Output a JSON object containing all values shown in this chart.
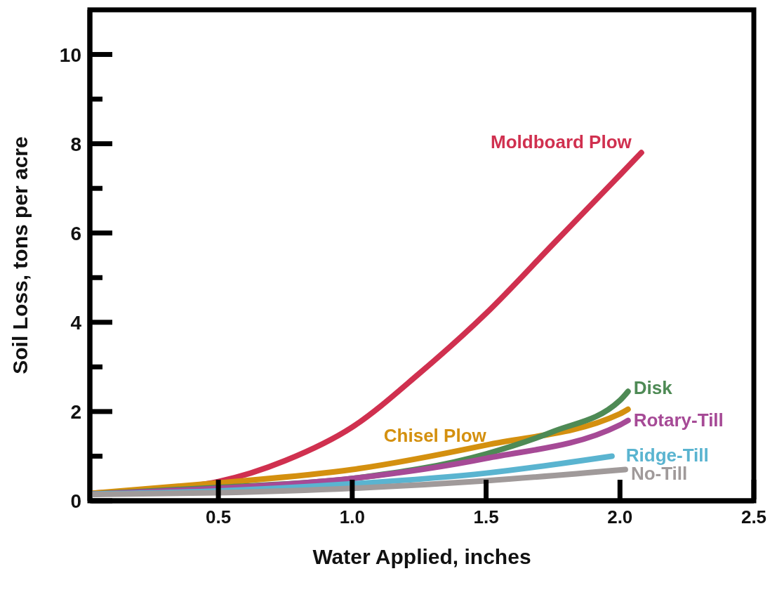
{
  "chart_data": {
    "type": "line",
    "xlabel": "Water Applied, inches",
    "ylabel": "Soil Loss, tons per acre",
    "xlim": [
      0.02,
      2.5
    ],
    "ylim": [
      0,
      11
    ],
    "xticks": [
      {
        "value": 0.5,
        "label": "0.5"
      },
      {
        "value": 1,
        "label": "1.0"
      },
      {
        "value": 1.5,
        "label": "1.5"
      },
      {
        "value": 2,
        "label": "2.0"
      },
      {
        "value": 2.5,
        "label": "2.5"
      }
    ],
    "yticks": [
      0,
      {
        "value": 1,
        "label": null
      },
      2,
      {
        "value": 3,
        "label": null
      },
      4,
      {
        "value": 5,
        "label": null
      },
      6,
      {
        "value": 7,
        "label": null
      },
      8,
      {
        "value": 9,
        "label": null
      },
      10
    ],
    "grid": false,
    "marker": "none",
    "line_style": "solid",
    "series": [
      {
        "name": "Moldboard Plow",
        "color": "#d0304f",
        "x": [
          0.03,
          0.25,
          0.4,
          0.5,
          0.75,
          1.0,
          1.25,
          1.5,
          1.75,
          2.0,
          2.08
        ],
        "values": [
          0.17,
          0.25,
          0.33,
          0.43,
          0.9,
          1.65,
          2.85,
          4.2,
          5.75,
          7.3,
          7.8
        ]
      },
      {
        "name": "Chisel Plow",
        "color": "#d4900f",
        "x": [
          0.03,
          0.5,
          1.0,
          1.5,
          2.0,
          2.03
        ],
        "values": [
          0.17,
          0.4,
          0.7,
          1.25,
          1.95,
          2.05
        ]
      },
      {
        "name": "Disk",
        "color": "#4e8a55",
        "x": [
          0.03,
          0.5,
          1.0,
          1.5,
          1.75,
          2.0,
          2.03
        ],
        "values": [
          0.15,
          0.3,
          0.5,
          1.05,
          1.55,
          2.25,
          2.45
        ]
      },
      {
        "name": "Rotary-Till",
        "color": "#a64a96",
        "x": [
          0.03,
          0.5,
          1.0,
          1.5,
          2.0,
          2.03
        ],
        "values": [
          0.15,
          0.28,
          0.5,
          0.95,
          1.7,
          1.8
        ]
      },
      {
        "name": "Ridge-Till",
        "color": "#5ab4d0",
        "x": [
          0.03,
          0.5,
          1.0,
          1.5,
          1.97
        ],
        "values": [
          0.15,
          0.22,
          0.38,
          0.62,
          1.0
        ]
      },
      {
        "name": "No-Till",
        "color": "#a09a9a",
        "x": [
          0.03,
          0.5,
          1.0,
          1.5,
          2.02
        ],
        "values": [
          0.14,
          0.18,
          0.28,
          0.45,
          0.7
        ]
      }
    ]
  }
}
